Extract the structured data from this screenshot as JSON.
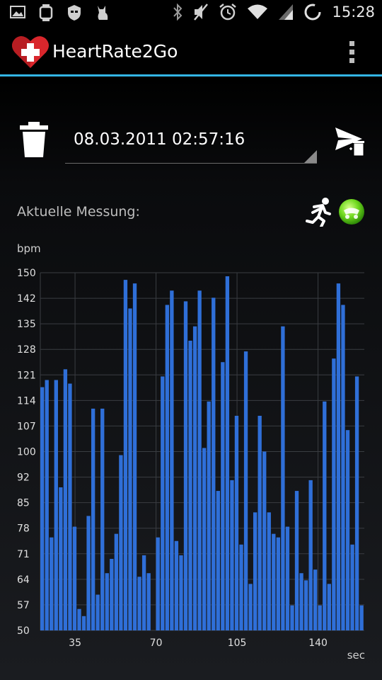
{
  "status_bar": {
    "time": "15:28",
    "left_icons": [
      "gallery-icon",
      "watch-icon",
      "shield-icon",
      "cat-icon"
    ],
    "right_icons": [
      "bluetooth-icon",
      "mute-icon",
      "alarm-icon",
      "wifi-icon",
      "signal-icon",
      "sync-icon"
    ]
  },
  "app_bar": {
    "title": "HeartRate2Go",
    "accent": "#33b5e5"
  },
  "session": {
    "selected_date": "08.03.2011 02:57:16"
  },
  "measurement": {
    "label": "Aktuelle Messung:"
  },
  "chart_data": {
    "type": "bar",
    "ylabel": "bpm",
    "xlabel": "sec",
    "ylim": [
      50,
      150
    ],
    "yticks": [
      "150",
      "142",
      "135",
      "128",
      "121",
      "114",
      "107",
      "100",
      "92",
      "85",
      "78",
      "71",
      "64",
      "57",
      "50"
    ],
    "xticks": [
      35,
      70,
      105,
      140
    ],
    "xlim": [
      20,
      160
    ],
    "grid": true,
    "bar_color": "#2f6fd8",
    "x": [
      21,
      23,
      25,
      27,
      29,
      31,
      33,
      35,
      37,
      39,
      41,
      43,
      45,
      47,
      49,
      51,
      53,
      55,
      57,
      59,
      61,
      63,
      65,
      67,
      69,
      71,
      73,
      75,
      77,
      79,
      81,
      83,
      85,
      87,
      89,
      91,
      93,
      95,
      97,
      99,
      101,
      103,
      105,
      107,
      109,
      111,
      113,
      115,
      117,
      119,
      121,
      123,
      125,
      127,
      129,
      131,
      133,
      135,
      137,
      139,
      141,
      143,
      145,
      147,
      149,
      151,
      153,
      155,
      157,
      159
    ],
    "values": [
      118,
      120,
      76,
      120,
      90,
      123,
      119,
      79,
      56,
      54,
      82,
      112,
      60,
      112,
      66,
      70,
      77,
      99,
      148,
      140,
      147,
      65,
      71,
      66,
      50,
      76,
      121,
      141,
      145,
      75,
      71,
      142,
      131,
      135,
      145,
      101,
      114,
      143,
      89,
      125,
      149,
      92,
      110,
      74,
      128,
      63,
      83,
      110,
      100,
      83,
      77,
      76,
      135,
      79,
      57,
      89,
      66,
      64,
      92,
      67,
      57,
      114,
      63,
      126,
      147,
      141,
      106,
      74,
      121,
      57
    ]
  }
}
